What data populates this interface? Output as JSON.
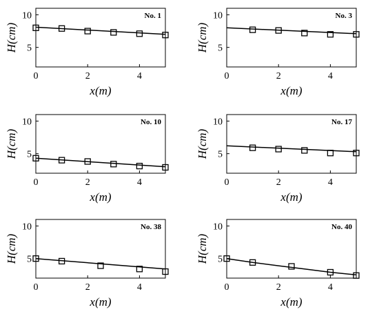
{
  "chart_data": [
    {
      "type": "scatter",
      "label": "No. 1",
      "xlabel": "x(m)",
      "ylabel": "H(cm)",
      "xlim": [
        0,
        5
      ],
      "ylim": [
        2,
        11
      ],
      "xticks": [
        "0",
        "2",
        "4"
      ],
      "yticks": [
        "5",
        "10"
      ],
      "series": [
        {
          "kind": "markers",
          "x": [
            0,
            1,
            2,
            3,
            4,
            5
          ],
          "y": [
            8.0,
            7.9,
            7.5,
            7.3,
            7.1,
            6.9
          ]
        },
        {
          "kind": "line",
          "x": [
            0,
            5
          ],
          "y": [
            8.1,
            7.0
          ]
        }
      ]
    },
    {
      "type": "scatter",
      "label": "No. 3",
      "xlabel": "x(m)",
      "ylabel": "H(cm)",
      "xlim": [
        0,
        5
      ],
      "ylim": [
        2,
        11
      ],
      "xticks": [
        "0",
        "2",
        "4"
      ],
      "yticks": [
        "5",
        "10"
      ],
      "series": [
        {
          "kind": "markers",
          "x": [
            1,
            2,
            3,
            4,
            5
          ],
          "y": [
            7.7,
            7.6,
            7.2,
            7.0,
            7.0
          ]
        },
        {
          "kind": "line",
          "x": [
            0,
            5
          ],
          "y": [
            8.0,
            7.1
          ]
        }
      ]
    },
    {
      "type": "scatter",
      "label": "No. 10",
      "xlabel": "x(m)",
      "ylabel": "H(cm)",
      "xlim": [
        0,
        5
      ],
      "ylim": [
        2,
        11
      ],
      "xticks": [
        "0",
        "2",
        "4"
      ],
      "yticks": [
        "5",
        "10"
      ],
      "series": [
        {
          "kind": "markers",
          "x": [
            0,
            1,
            2,
            3,
            4,
            5
          ],
          "y": [
            4.3,
            4.0,
            3.8,
            3.4,
            3.1,
            2.9
          ]
        },
        {
          "kind": "line",
          "x": [
            0,
            5
          ],
          "y": [
            4.3,
            3.0
          ]
        }
      ]
    },
    {
      "type": "scatter",
      "label": "No. 17",
      "xlabel": "x(m)",
      "ylabel": "H(cm)",
      "xlim": [
        0,
        5
      ],
      "ylim": [
        2,
        11
      ],
      "xticks": [
        "0",
        "2",
        "4"
      ],
      "yticks": [
        "5",
        "10"
      ],
      "series": [
        {
          "kind": "markers",
          "x": [
            1,
            2,
            3,
            4,
            5
          ],
          "y": [
            5.9,
            5.7,
            5.5,
            5.1,
            5.1
          ]
        },
        {
          "kind": "line",
          "x": [
            0,
            5
          ],
          "y": [
            6.2,
            5.3
          ]
        }
      ]
    },
    {
      "type": "scatter",
      "label": "No. 38",
      "xlabel": "x(m)",
      "ylabel": "H(cm)",
      "xlim": [
        0,
        5
      ],
      "ylim": [
        2,
        11
      ],
      "xticks": [
        "0",
        "2",
        "4"
      ],
      "yticks": [
        "5",
        "10"
      ],
      "series": [
        {
          "kind": "markers",
          "x": [
            0,
            1,
            2.5,
            4,
            5
          ],
          "y": [
            5.0,
            4.6,
            3.9,
            3.4,
            3.0
          ]
        },
        {
          "kind": "line",
          "x": [
            0,
            5
          ],
          "y": [
            5.0,
            3.4
          ]
        }
      ]
    },
    {
      "type": "scatter",
      "label": "No. 40",
      "xlabel": "x(m)",
      "ylabel": "H(cm)",
      "xlim": [
        0,
        5
      ],
      "ylim": [
        2,
        11
      ],
      "xticks": [
        "0",
        "2",
        "4"
      ],
      "yticks": [
        "5",
        "10"
      ],
      "series": [
        {
          "kind": "markers",
          "x": [
            0,
            1,
            2.5,
            4,
            5
          ],
          "y": [
            5.0,
            4.4,
            3.8,
            2.9,
            2.4
          ]
        },
        {
          "kind": "line",
          "x": [
            0,
            1,
            2,
            3,
            4,
            5
          ],
          "y": [
            5.0,
            4.4,
            3.9,
            3.4,
            2.9,
            2.5
          ]
        }
      ]
    }
  ]
}
